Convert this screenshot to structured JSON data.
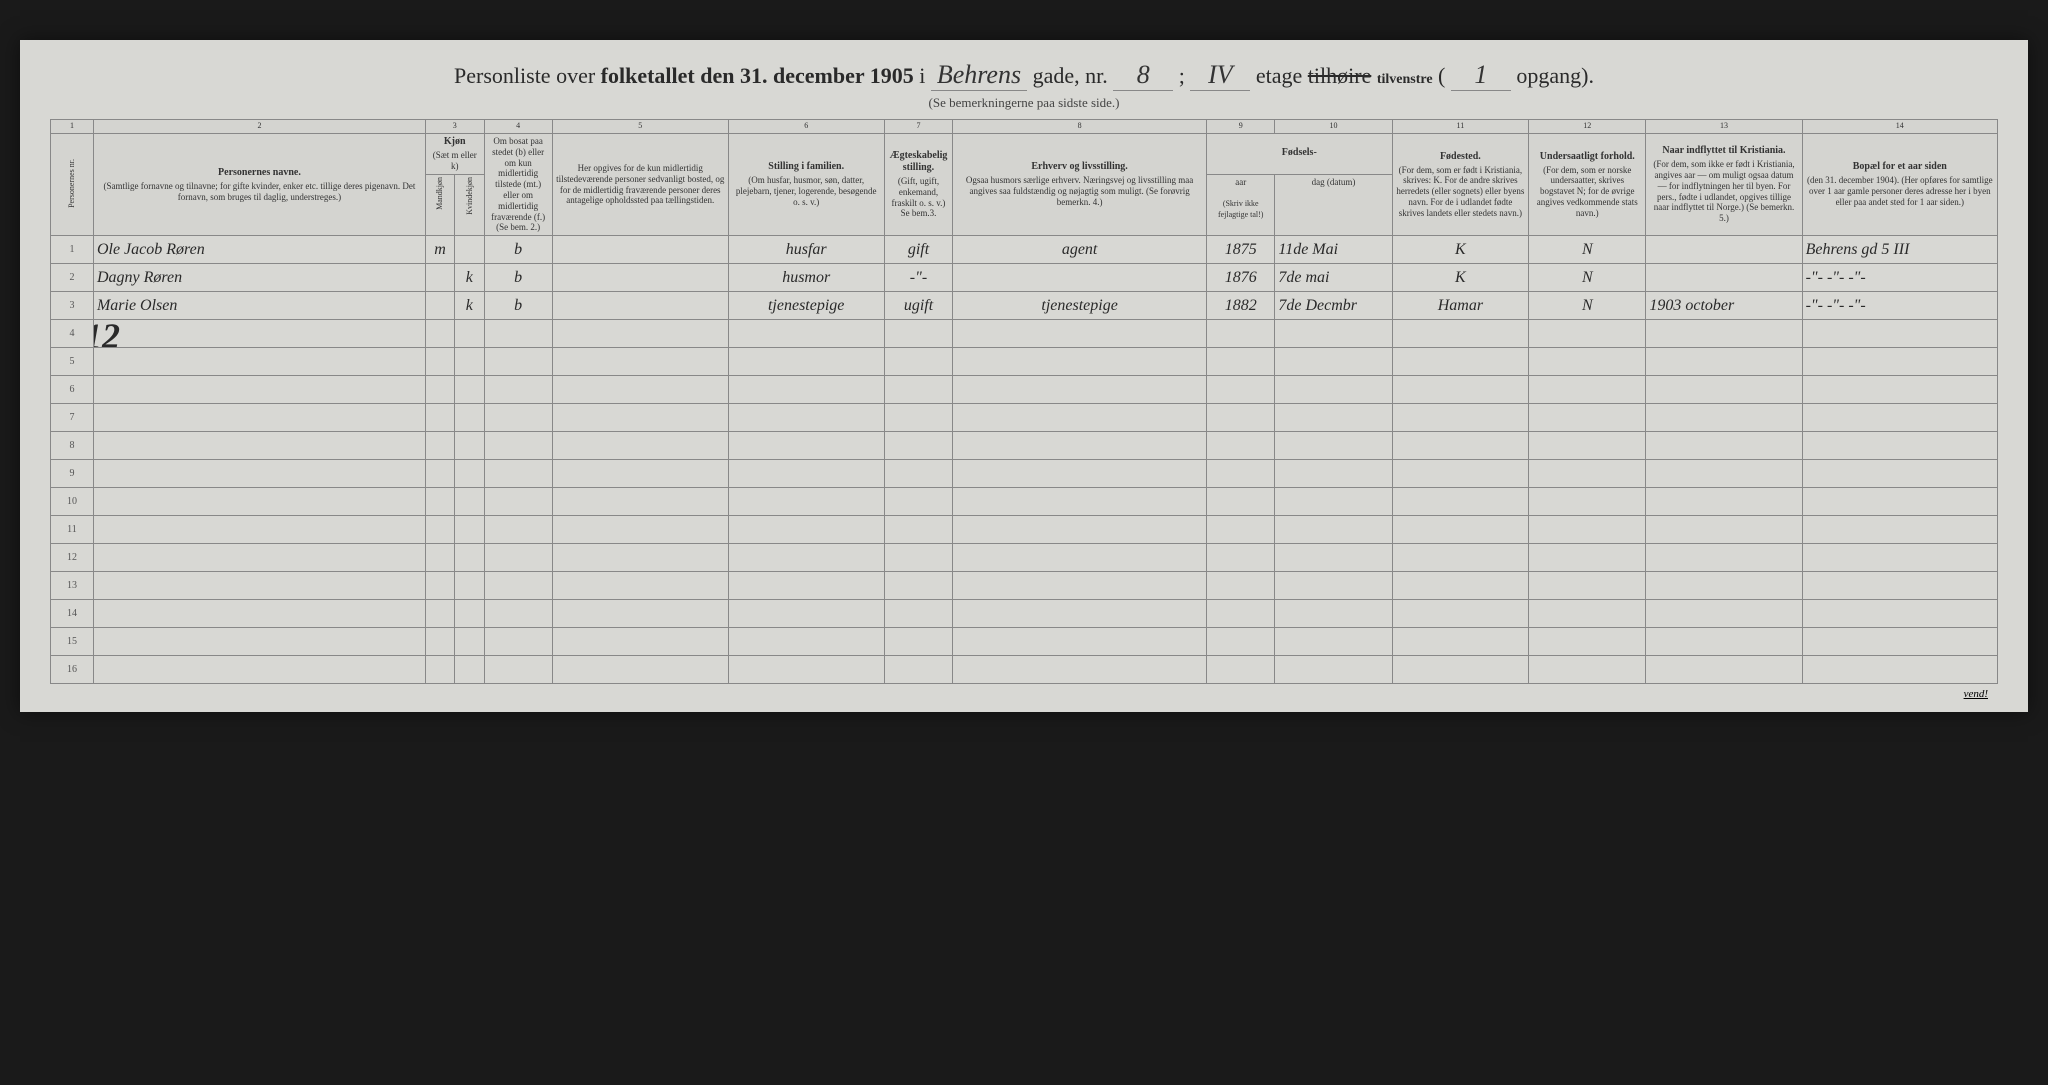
{
  "header": {
    "prefix": "Personliste over ",
    "bold1": "folketallet den 31. december 1905",
    "mid1": " i ",
    "street": "Behrens",
    "mid2": " gade, nr. ",
    "number": "8",
    "mid3": " ; ",
    "floor": "IV",
    "mid4": " etage ",
    "strike": "tilhøire",
    "side": "tilvenstre",
    "mid5": " ( ",
    "opgang": "1",
    "suffix": " opgang).",
    "subtitle": "(Se bemerkningerne paa sidste side.)"
  },
  "columns": {
    "nums": [
      "1",
      "2",
      "3",
      "4",
      "5",
      "6",
      "7",
      "8",
      "9",
      "10",
      "11",
      "12",
      "13",
      "14"
    ],
    "h1": "Personernes nr.",
    "h2": "Personernes navne.",
    "h2sub": "(Samtlige fornavne og tilnavne; for gifte kvinder, enker etc. tillige deres pigenavn. Det fornavn, som bruges til daglig, understreges.)",
    "h3": "Kjøn",
    "h3sub": "(Sæt m eller k)",
    "h3a": "Mandkjøn",
    "h3b": "Kvindekjøn",
    "h4": "Om bosat paa stedet (b) eller om kun midlertidig tilstede (mt.) eller om midlertidig fraværende (f.)",
    "h4sub": "(Se bem. 2.)",
    "h5": "Her opgives for de kun midlertidig tilstedeværende personer sedvanligt bosted, og for de midlertidig fraværende personer deres antagelige opholdssted paa tællingstiden.",
    "h6": "Stilling i familien.",
    "h6sub": "(Om husfar, husmor, søn, datter, plejebarn, tjener, logerende, besøgende o. s. v.)",
    "h7": "Ægteskabelig stilling.",
    "h7sub": "(Gift, ugift, enkemand, fraskilt o. s. v.) Se bem.3.",
    "h8": "Erhverv og livsstilling.",
    "h8sub": "Ogsaa husmors særlige erhverv. Næringsvej og livsstilling maa angives saa fuldstændig og nøjagtig som muligt. (Se forøvrig bemerkn. 4.)",
    "h9": "Fødsels-",
    "h9a": "aar",
    "h9b": "dag (datum)",
    "h9sub": "(Skriv ikke fejlagtige tal!)",
    "h11": "Fødested.",
    "h11sub": "(For dem, som er født i Kristiania, skrives: K. For de andre skrives herredets (eller sognets) eller byens navn. For de i udlandet fødte skrives landets eller stedets navn.)",
    "h12": "Undersaatligt forhold.",
    "h12sub": "(For dem, som er norske undersaatter, skrives bogstavet N; for de øvrige angives vedkommende stats navn.)",
    "h13": "Naar indflyttet til Kristiania.",
    "h13sub": "(For dem, som ikke er født i Kristiania, angives aar — om muligt ogsaa datum — for indflytningen her til byen. For pers., fødte i udlandet, opgives tillige naar indflyttet til Norge.) (Se bemerkn. 5.)",
    "h14": "Bopæl for et aar siden",
    "h14sub": "(den 31. december 1904). (Her opføres for samtlige over 1 aar gamle personer deres adresse her i byen eller paa andet sted for 1 aar siden.)"
  },
  "rows": [
    {
      "n": "1",
      "name": "Ole Jacob Røren",
      "sexM": "m",
      "sexK": "",
      "res": "b",
      "away": "",
      "fam": "husfar",
      "mar": "gift",
      "occ": "agent",
      "yr": "1875",
      "day": "11de Mai",
      "born": "K",
      "nat": "N",
      "moved": "",
      "addr": "Behrens gd 5 III"
    },
    {
      "n": "2",
      "name": "Dagny Røren",
      "sexM": "",
      "sexK": "k",
      "res": "b",
      "away": "",
      "fam": "husmor",
      "mar": "-\"-",
      "occ": "",
      "yr": "1876",
      "day": "7de mai",
      "born": "K",
      "nat": "N",
      "moved": "",
      "addr": "-\"-  -\"-  -\"-"
    },
    {
      "n": "3",
      "name": "Marie Olsen",
      "sexM": "",
      "sexK": "k",
      "res": "b",
      "away": "",
      "fam": "tjenestepige",
      "mar": "ugift",
      "occ": "tjenestepige",
      "yr": "1882",
      "day": "7de Decmbr",
      "born": "Hamar",
      "nat": "N",
      "moved": "1903 october",
      "addr": "-\"-  -\"-  -\"-"
    },
    {
      "n": "4",
      "name": "",
      "sexM": "",
      "sexK": "",
      "res": "",
      "away": "",
      "fam": "",
      "mar": "",
      "occ": "",
      "yr": "",
      "day": "",
      "born": "",
      "nat": "",
      "moved": "",
      "addr": ""
    },
    {
      "n": "5",
      "name": "",
      "sexM": "",
      "sexK": "",
      "res": "",
      "away": "",
      "fam": "",
      "mar": "",
      "occ": "",
      "yr": "",
      "day": "",
      "born": "",
      "nat": "",
      "moved": "",
      "addr": ""
    },
    {
      "n": "6",
      "name": "",
      "sexM": "",
      "sexK": "",
      "res": "",
      "away": "",
      "fam": "",
      "mar": "",
      "occ": "",
      "yr": "",
      "day": "",
      "born": "",
      "nat": "",
      "moved": "",
      "addr": ""
    },
    {
      "n": "7",
      "name": "",
      "sexM": "",
      "sexK": "",
      "res": "",
      "away": "",
      "fam": "",
      "mar": "",
      "occ": "",
      "yr": "",
      "day": "",
      "born": "",
      "nat": "",
      "moved": "",
      "addr": ""
    },
    {
      "n": "8",
      "name": "",
      "sexM": "",
      "sexK": "",
      "res": "",
      "away": "",
      "fam": "",
      "mar": "",
      "occ": "",
      "yr": "",
      "day": "",
      "born": "",
      "nat": "",
      "moved": "",
      "addr": ""
    },
    {
      "n": "9",
      "name": "",
      "sexM": "",
      "sexK": "",
      "res": "",
      "away": "",
      "fam": "",
      "mar": "",
      "occ": "",
      "yr": "",
      "day": "",
      "born": "",
      "nat": "",
      "moved": "",
      "addr": ""
    },
    {
      "n": "10",
      "name": "",
      "sexM": "",
      "sexK": "",
      "res": "",
      "away": "",
      "fam": "",
      "mar": "",
      "occ": "",
      "yr": "",
      "day": "",
      "born": "",
      "nat": "",
      "moved": "",
      "addr": ""
    },
    {
      "n": "11",
      "name": "",
      "sexM": "",
      "sexK": "",
      "res": "",
      "away": "",
      "fam": "",
      "mar": "",
      "occ": "",
      "yr": "",
      "day": "",
      "born": "",
      "nat": "",
      "moved": "",
      "addr": ""
    },
    {
      "n": "12",
      "name": "",
      "sexM": "",
      "sexK": "",
      "res": "",
      "away": "",
      "fam": "",
      "mar": "",
      "occ": "",
      "yr": "",
      "day": "",
      "born": "",
      "nat": "",
      "moved": "",
      "addr": ""
    },
    {
      "n": "13",
      "name": "",
      "sexM": "",
      "sexK": "",
      "res": "",
      "away": "",
      "fam": "",
      "mar": "",
      "occ": "",
      "yr": "",
      "day": "",
      "born": "",
      "nat": "",
      "moved": "",
      "addr": ""
    },
    {
      "n": "14",
      "name": "",
      "sexM": "",
      "sexK": "",
      "res": "",
      "away": "",
      "fam": "",
      "mar": "",
      "occ": "",
      "yr": "",
      "day": "",
      "born": "",
      "nat": "",
      "moved": "",
      "addr": ""
    },
    {
      "n": "15",
      "name": "",
      "sexM": "",
      "sexK": "",
      "res": "",
      "away": "",
      "fam": "",
      "mar": "",
      "occ": "",
      "yr": "",
      "day": "",
      "born": "",
      "nat": "",
      "moved": "",
      "addr": ""
    },
    {
      "n": "16",
      "name": "",
      "sexM": "",
      "sexK": "",
      "res": "",
      "away": "",
      "fam": "",
      "mar": "",
      "occ": "",
      "yr": "",
      "day": "",
      "born": "",
      "nat": "",
      "moved": "",
      "addr": ""
    }
  ],
  "annotation": {
    "twelve": "12"
  },
  "footer": {
    "vend": "vend!"
  }
}
